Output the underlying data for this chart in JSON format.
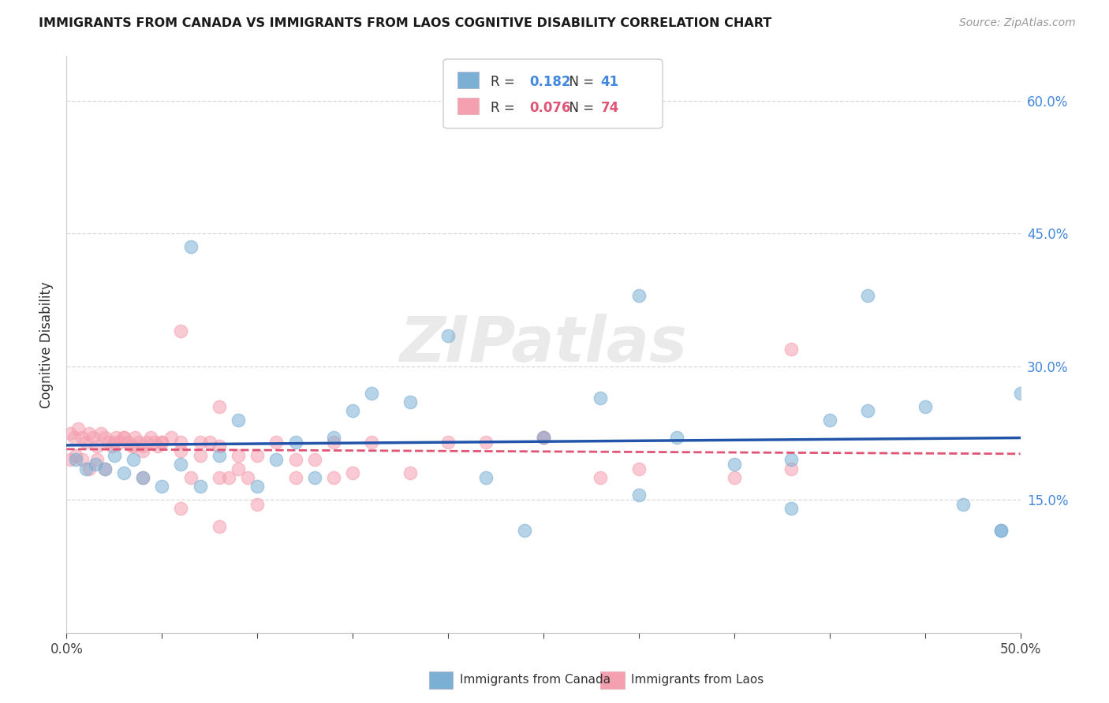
{
  "title": "IMMIGRANTS FROM CANADA VS IMMIGRANTS FROM LAOS COGNITIVE DISABILITY CORRELATION CHART",
  "source": "Source: ZipAtlas.com",
  "ylabel": "Cognitive Disability",
  "xmin": 0.0,
  "xmax": 0.5,
  "ymin": 0.0,
  "ymax": 0.65,
  "canada_color": "#7bafd4",
  "canada_color_line": "#2255aa",
  "laos_color": "#f5a0b0",
  "laos_color_line": "#e05575",
  "R_canada": "0.182",
  "N_canada": "41",
  "R_laos": "0.076",
  "N_laos": "74",
  "legend_label_canada": "Immigrants from Canada",
  "legend_label_laos": "Immigrants from Laos",
  "canada_x": [
    0.005,
    0.01,
    0.015,
    0.02,
    0.025,
    0.03,
    0.035,
    0.04,
    0.05,
    0.06,
    0.065,
    0.07,
    0.08,
    0.09,
    0.1,
    0.11,
    0.12,
    0.13,
    0.14,
    0.15,
    0.16,
    0.18,
    0.2,
    0.22,
    0.24,
    0.25,
    0.28,
    0.3,
    0.32,
    0.35,
    0.38,
    0.4,
    0.42,
    0.45,
    0.47,
    0.49,
    0.5,
    0.3,
    0.38,
    0.42,
    0.49
  ],
  "canada_y": [
    0.195,
    0.185,
    0.19,
    0.185,
    0.2,
    0.18,
    0.195,
    0.175,
    0.165,
    0.19,
    0.435,
    0.165,
    0.2,
    0.24,
    0.165,
    0.195,
    0.215,
    0.175,
    0.22,
    0.25,
    0.27,
    0.26,
    0.335,
    0.175,
    0.115,
    0.22,
    0.265,
    0.38,
    0.22,
    0.19,
    0.195,
    0.24,
    0.38,
    0.255,
    0.145,
    0.115,
    0.27,
    0.155,
    0.14,
    0.25,
    0.115
  ],
  "laos_x": [
    0.002,
    0.004,
    0.006,
    0.008,
    0.01,
    0.012,
    0.014,
    0.016,
    0.018,
    0.02,
    0.022,
    0.024,
    0.026,
    0.028,
    0.03,
    0.032,
    0.034,
    0.036,
    0.038,
    0.04,
    0.042,
    0.044,
    0.046,
    0.048,
    0.05,
    0.055,
    0.06,
    0.065,
    0.07,
    0.075,
    0.08,
    0.085,
    0.09,
    0.095,
    0.1,
    0.11,
    0.12,
    0.13,
    0.14,
    0.15,
    0.002,
    0.005,
    0.008,
    0.012,
    0.016,
    0.02,
    0.025,
    0.03,
    0.035,
    0.04,
    0.05,
    0.06,
    0.07,
    0.08,
    0.09,
    0.1,
    0.12,
    0.14,
    0.16,
    0.18,
    0.2,
    0.22,
    0.25,
    0.28,
    0.3,
    0.35,
    0.38,
    0.04,
    0.06,
    0.08,
    0.38,
    0.25,
    0.08,
    0.06
  ],
  "laos_y": [
    0.225,
    0.22,
    0.23,
    0.22,
    0.215,
    0.225,
    0.22,
    0.21,
    0.225,
    0.22,
    0.215,
    0.21,
    0.22,
    0.215,
    0.22,
    0.215,
    0.21,
    0.22,
    0.215,
    0.21,
    0.215,
    0.22,
    0.215,
    0.21,
    0.215,
    0.22,
    0.215,
    0.175,
    0.2,
    0.215,
    0.21,
    0.175,
    0.185,
    0.175,
    0.2,
    0.215,
    0.195,
    0.195,
    0.175,
    0.18,
    0.195,
    0.2,
    0.195,
    0.185,
    0.195,
    0.185,
    0.215,
    0.22,
    0.21,
    0.205,
    0.215,
    0.205,
    0.215,
    0.12,
    0.2,
    0.145,
    0.175,
    0.215,
    0.215,
    0.18,
    0.215,
    0.215,
    0.22,
    0.175,
    0.185,
    0.175,
    0.185,
    0.175,
    0.14,
    0.175,
    0.32,
    0.22,
    0.255,
    0.34
  ],
  "watermark": "ZIPatlas",
  "background_color": "#ffffff",
  "grid_color": "#d8d8d8",
  "right_tick_color": "#4488dd",
  "x_tick_count": 10
}
